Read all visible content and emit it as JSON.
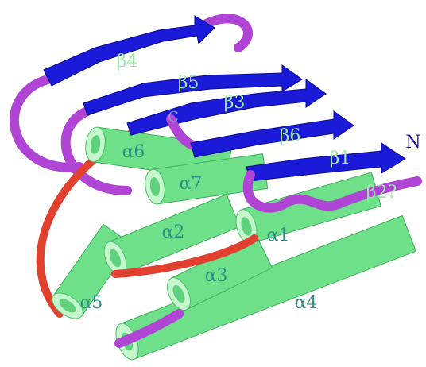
{
  "strands": [
    "β4",
    "β5",
    "β3",
    "β6",
    "β1",
    "β2?"
  ],
  "helices": [
    "α6",
    "α7",
    "α2",
    "α1",
    "α5",
    "α3",
    "α4"
  ],
  "termini": [
    "N",
    "C"
  ]
}
